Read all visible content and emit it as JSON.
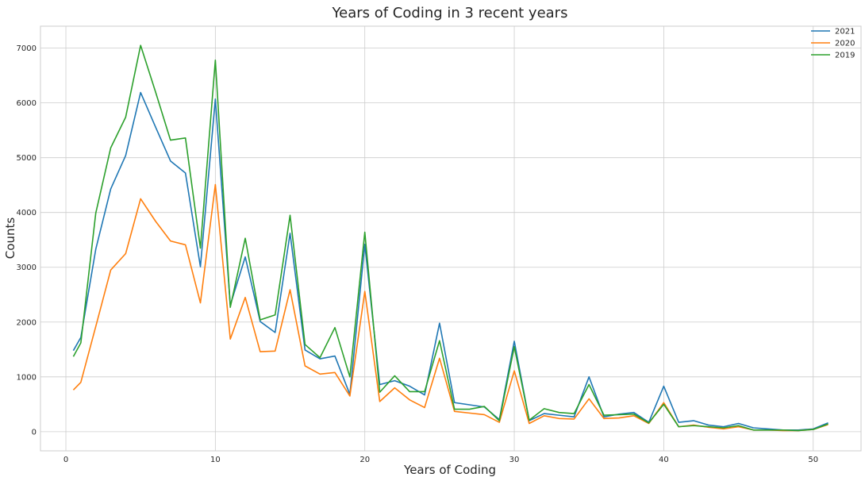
{
  "chart_data": {
    "type": "line",
    "title": "Years of Coding in 3 recent years",
    "xlabel": "Years of Coding",
    "ylabel": "Counts",
    "xlim": [
      -1.7,
      53.2
    ],
    "ylim": [
      -350,
      7400
    ],
    "xticks": [
      0,
      10,
      20,
      30,
      40,
      50
    ],
    "yticks": [
      0,
      1000,
      2000,
      3000,
      4000,
      5000,
      6000,
      7000
    ],
    "grid": true,
    "legend": "top-right",
    "x": [
      0.5,
      1,
      2,
      3,
      4,
      5,
      6,
      7,
      8,
      9,
      10,
      11,
      12,
      13,
      14,
      15,
      16,
      17,
      18,
      19,
      20,
      21,
      22,
      23,
      24,
      25,
      26,
      27,
      28,
      29,
      30,
      31,
      32,
      33,
      34,
      35,
      36,
      37,
      38,
      39,
      40,
      41,
      42,
      43,
      44,
      45,
      46,
      47,
      48,
      49,
      50,
      51
    ],
    "series": [
      {
        "name": "2021",
        "color": "#1f77b4",
        "values": [
          1480,
          1720,
          3330,
          4430,
          5040,
          6190,
          5560,
          4940,
          4720,
          3010,
          6070,
          2310,
          3190,
          2010,
          1810,
          3620,
          1490,
          1330,
          1380,
          680,
          3420,
          860,
          930,
          830,
          670,
          1980,
          530,
          490,
          450,
          220,
          1650,
          200,
          330,
          300,
          270,
          1000,
          270,
          320,
          350,
          170,
          830,
          170,
          200,
          120,
          90,
          150,
          70,
          50,
          30,
          30,
          50,
          160
        ]
      },
      {
        "name": "2020",
        "color": "#ff7f0e",
        "values": [
          760,
          900,
          1920,
          2950,
          3250,
          4250,
          3840,
          3480,
          3410,
          2350,
          4510,
          1690,
          2450,
          1460,
          1470,
          2590,
          1200,
          1050,
          1080,
          650,
          2560,
          550,
          800,
          580,
          440,
          1340,
          370,
          340,
          310,
          170,
          1110,
          150,
          290,
          240,
          230,
          600,
          240,
          250,
          290,
          150,
          530,
          90,
          120,
          80,
          50,
          90,
          30,
          30,
          20,
          20,
          40,
          130
        ]
      },
      {
        "name": "2019",
        "color": "#2ca02c",
        "values": [
          1370,
          1620,
          3990,
          5180,
          5740,
          7050,
          6200,
          5320,
          5360,
          3350,
          6780,
          2270,
          3530,
          2040,
          2130,
          3950,
          1590,
          1350,
          1900,
          1000,
          3640,
          720,
          1020,
          730,
          730,
          1660,
          410,
          410,
          460,
          200,
          1550,
          210,
          420,
          350,
          330,
          860,
          300,
          310,
          320,
          160,
          500,
          90,
          110,
          90,
          70,
          110,
          30,
          30,
          30,
          20,
          40,
          140
        ]
      }
    ]
  }
}
